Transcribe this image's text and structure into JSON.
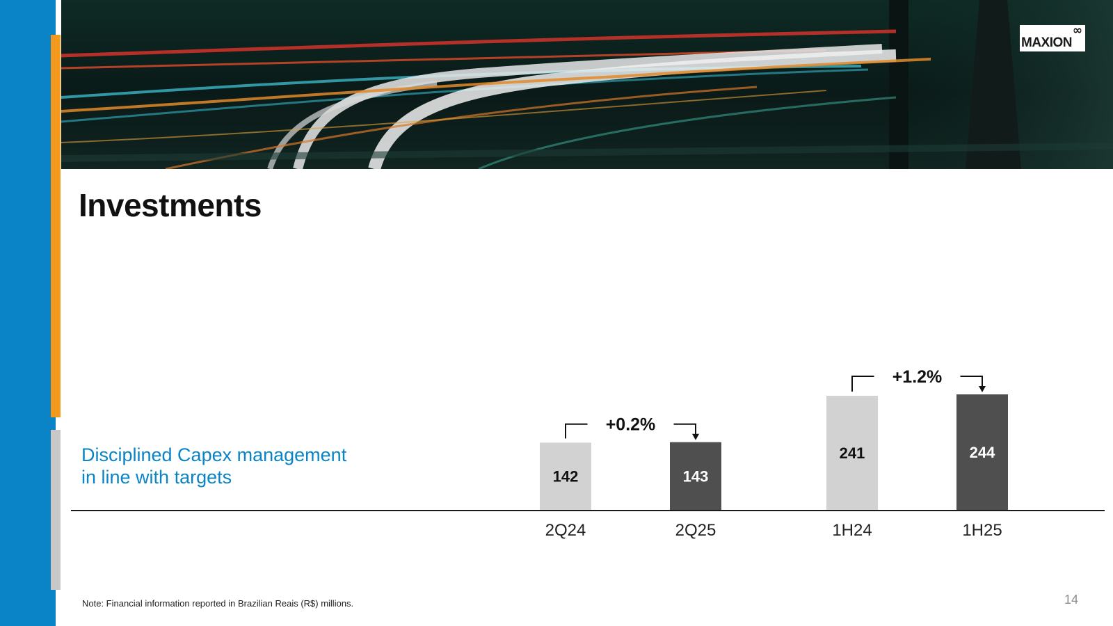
{
  "slide": {
    "title": "Investments",
    "subtitle_lines": [
      "Disciplined Capex management",
      "in line with targets"
    ],
    "note": "Note: Financial information reported in Brazilian Reais (R$) millions.",
    "page_number": "14"
  },
  "logo": {
    "text": "MAXION",
    "mark": "∞"
  },
  "colors": {
    "left_bar": "#0a84c6",
    "accent_orange": "#f39a1e",
    "accent_grey": "#c8c8c8",
    "bar_light": "#d2d2d2",
    "bar_dark": "#4f4f4f",
    "subtitle": "#0a84c6"
  },
  "chart_data": {
    "type": "bar",
    "title": "",
    "unit": "R$ millions",
    "categories": [
      "2Q24",
      "2Q25",
      "1H24",
      "1H25"
    ],
    "values": [
      142,
      143,
      241,
      244
    ],
    "value_labels": [
      "142",
      "143",
      "241",
      "244"
    ],
    "bar_styles": [
      "light",
      "dark",
      "light",
      "dark"
    ],
    "comparisons": [
      {
        "from": 0,
        "to": 1,
        "label": "+0.2%"
      },
      {
        "from": 2,
        "to": 3,
        "label": "+1.2%"
      }
    ],
    "ylim": [
      0,
      250
    ],
    "legend": "none"
  }
}
